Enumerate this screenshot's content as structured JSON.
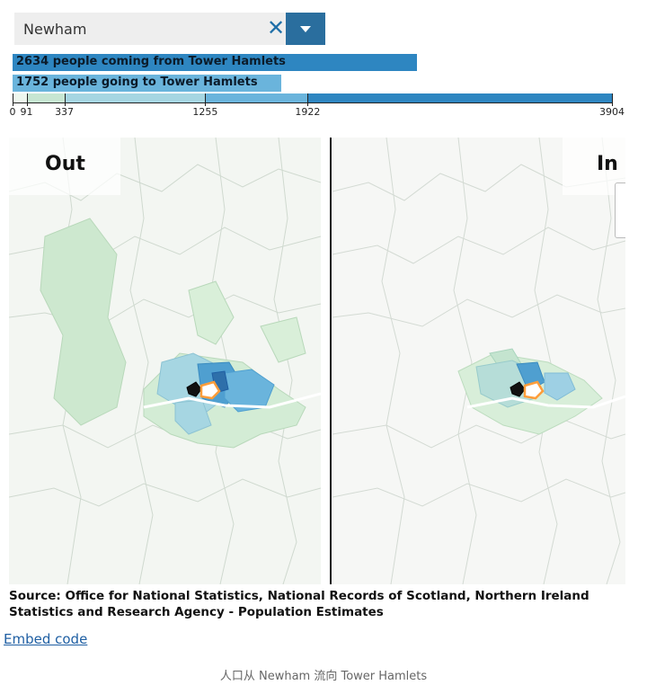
{
  "search": {
    "value": "Newham"
  },
  "bars": {
    "coming_from": {
      "label": "2634 people coming from Tower Hamlets",
      "value": 2634
    },
    "going_to": {
      "label": "1752 people going to Tower Hamlets",
      "value": 1752
    },
    "max": 3904
  },
  "legend": {
    "ticks": [
      "0",
      "91",
      "337",
      "1255",
      "1922",
      "3904"
    ],
    "tick_values": [
      0,
      91,
      337,
      1255,
      1922,
      3904
    ],
    "colors": [
      "#eef7ee",
      "#c7e6d2",
      "#a6d6e2",
      "#6ab4dc",
      "#2e86c1"
    ]
  },
  "maps": {
    "out_label": "Out",
    "in_label": "In"
  },
  "source": "Source: Office for National Statistics, National Records of Scotland, Northern Ireland Statistics and Research Agency - Population Estimates",
  "embed_link": "Embed code",
  "caption": "人口从 Newham 流向 Tower Hamlets"
}
